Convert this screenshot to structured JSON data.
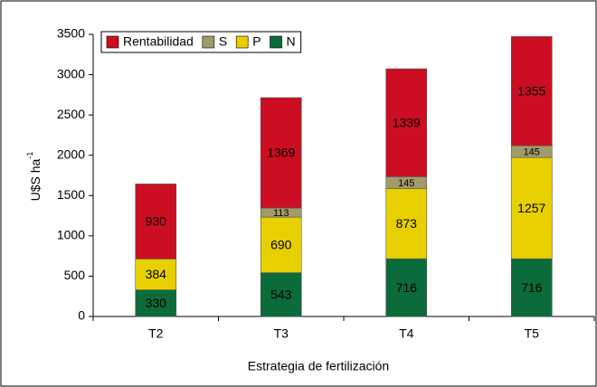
{
  "chart_data": {
    "type": "stacked_bar",
    "x_label": "Estrategia de fertilización",
    "y_label": "U$S ha",
    "y_label_sup": "-1",
    "categories": [
      "T2",
      "T3",
      "T4",
      "T5"
    ],
    "series": [
      {
        "name": "N",
        "color": "#0b6b3a",
        "label_color": "#ffffff",
        "values": [
          330,
          543,
          716,
          716
        ]
      },
      {
        "name": "P",
        "color": "#e8d000",
        "label_color": "#000000",
        "values": [
          384,
          690,
          873,
          1257
        ]
      },
      {
        "name": "S",
        "color": "#a39a6b",
        "label_color": "#000000",
        "values": [
          null,
          113,
          145,
          145
        ]
      },
      {
        "name": "Rentabilidad",
        "color": "#cc0e22",
        "label_color": "#ffffff",
        "values": [
          930,
          1369,
          1339,
          1355
        ]
      }
    ],
    "ylim": [
      0,
      3500
    ],
    "yticks": [
      0,
      500,
      1000,
      1500,
      2000,
      2500,
      3000,
      3500
    ],
    "legend": "top-left",
    "legend_order": "reversed"
  }
}
